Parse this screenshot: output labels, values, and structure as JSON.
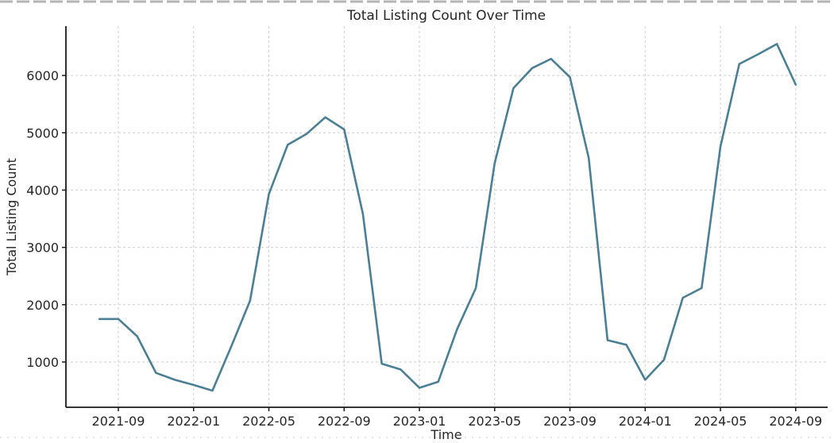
{
  "page": {
    "background_color": "#ffffff",
    "top_edge_artifact_color": "#b4b4b4",
    "bottom_edge_artifact_color": "#dcdcdc"
  },
  "chart_data": {
    "type": "line",
    "title": "Total Listing Count Over Time",
    "xlabel": "Time",
    "ylabel": "Total Listing Count",
    "line_color": "#4a7f96",
    "grid": true,
    "grid_color": "#cfcfcf",
    "spine_color": "#1a1a1a",
    "legend": "none",
    "ylim": [
      210,
      6860
    ],
    "y_ticks": [
      1000,
      2000,
      3000,
      4000,
      5000,
      6000
    ],
    "x_ticks": [
      "2021-09",
      "2022-01",
      "2022-05",
      "2022-09",
      "2023-01",
      "2023-05",
      "2023-09",
      "2024-01",
      "2024-05",
      "2024-09"
    ],
    "x": [
      "2021-08",
      "2021-09",
      "2021-10",
      "2021-11",
      "2021-12",
      "2022-01",
      "2022-02",
      "2022-03",
      "2022-04",
      "2022-05",
      "2022-06",
      "2022-07",
      "2022-08",
      "2022-09",
      "2022-10",
      "2022-11",
      "2022-12",
      "2023-01",
      "2023-02",
      "2023-03",
      "2023-04",
      "2023-05",
      "2023-06",
      "2023-07",
      "2023-08",
      "2023-09",
      "2023-10",
      "2023-11",
      "2023-12",
      "2024-01",
      "2024-02",
      "2024-03",
      "2024-04",
      "2024-05",
      "2024-06",
      "2024-07",
      "2024-08",
      "2024-09"
    ],
    "values": [
      1750,
      1750,
      1450,
      810,
      690,
      600,
      500,
      1270,
      2070,
      3930,
      4790,
      4980,
      5270,
      5060,
      3580,
      970,
      870,
      550,
      655,
      1570,
      2290,
      4470,
      5780,
      6130,
      6290,
      5970,
      4560,
      1380,
      1300,
      690,
      1040,
      2120,
      2290,
      4760,
      6200,
      6370,
      6550,
      5840
    ]
  }
}
